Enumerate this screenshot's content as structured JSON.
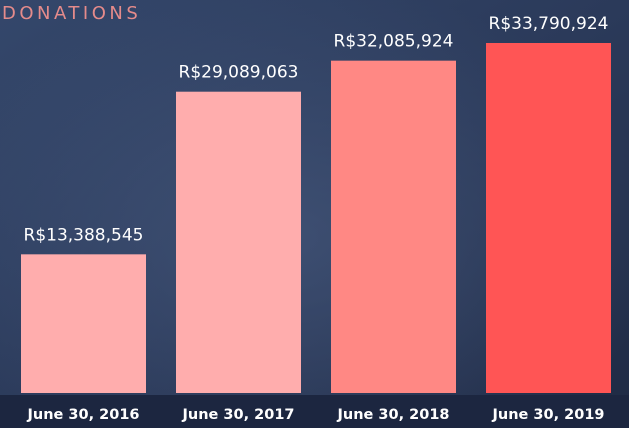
{
  "chart_data": {
    "type": "bar",
    "title": "DONATIONS",
    "categories": [
      "June 30, 2016",
      "June 30, 2017",
      "June 30, 2018",
      "June 30, 2019"
    ],
    "values": [
      13388545,
      29089063,
      32085924,
      33790924
    ],
    "value_labels": [
      "R$13,388,545",
      "R$29,089,063",
      "R$32,085,924",
      "R$33,790,924"
    ],
    "colors": [
      "#ffadad",
      "#ffadad",
      "#ff8884",
      "#ff5555"
    ]
  }
}
